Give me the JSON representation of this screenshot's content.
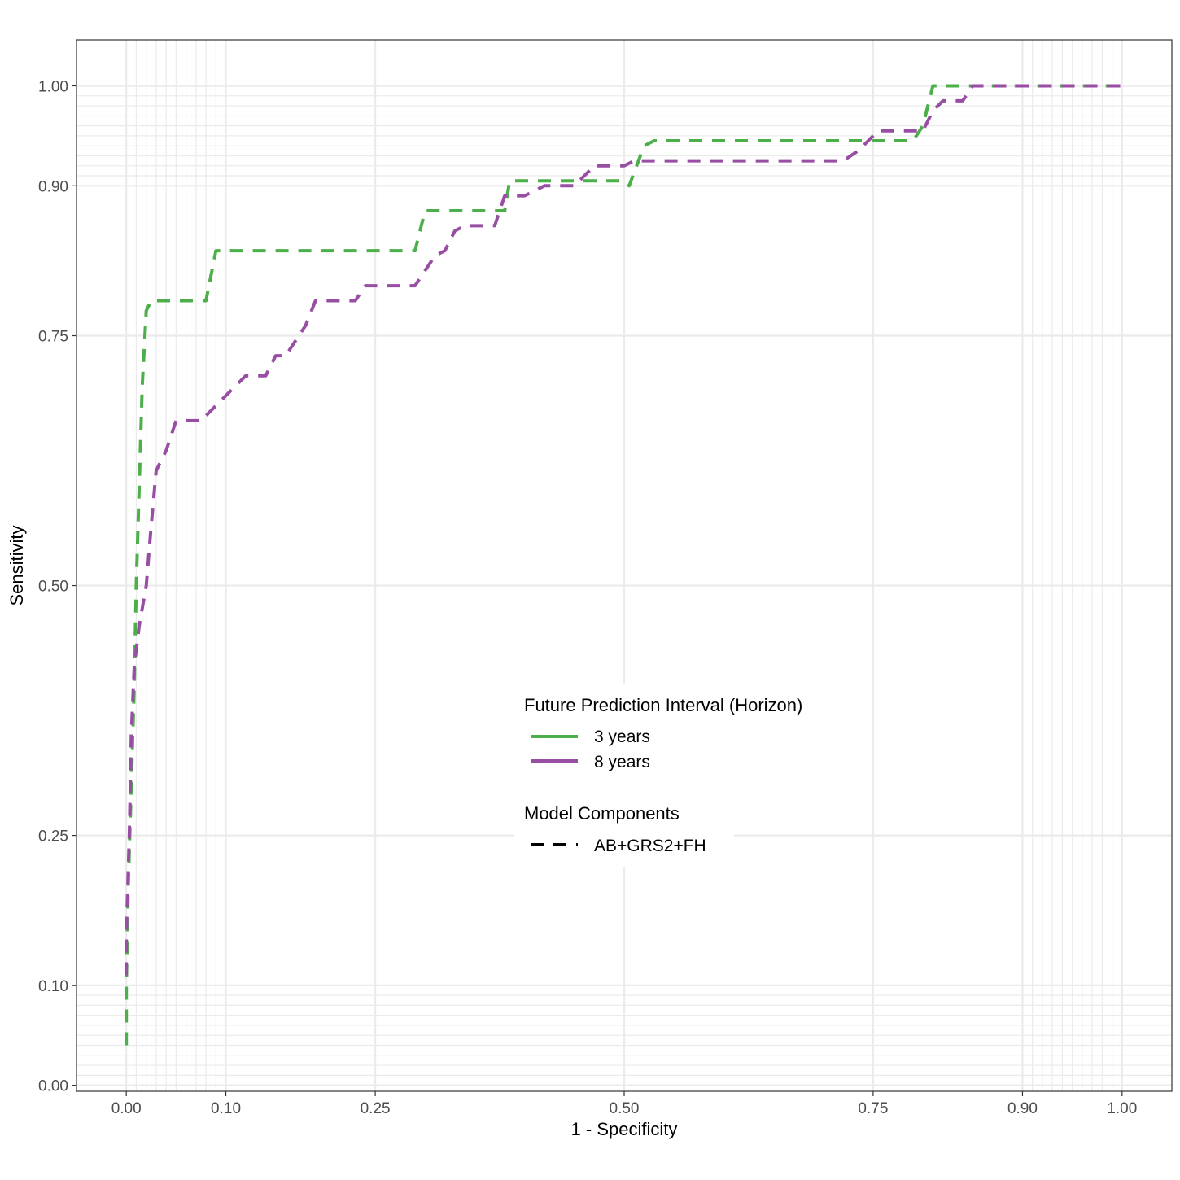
{
  "chart_data": {
    "type": "line",
    "xlabel": "1 - Specificity",
    "ylabel": "Sensitivity",
    "xlim": [
      -0.05,
      1.05
    ],
    "ylim": [
      -0.006,
      1.046
    ],
    "xticks": [
      0,
      0.1,
      0.25,
      0.5,
      0.75,
      0.9,
      1
    ],
    "xtick_labels": [
      "0.00",
      "0.10",
      "0.25",
      "0.50",
      "0.75",
      "0.90",
      "1.00"
    ],
    "yticks": [
      0,
      0.1,
      0.25,
      0.5,
      0.75,
      0.9,
      1
    ],
    "ytick_labels": [
      "0.00",
      "0.10",
      "0.25",
      "0.50",
      "0.75",
      "0.90",
      "1.00"
    ],
    "minor_grid": [
      0.01,
      0.02,
      0.03,
      0.04,
      0.05,
      0.06,
      0.07,
      0.08,
      0.09,
      0.91,
      0.92,
      0.93,
      0.94,
      0.95,
      0.96,
      0.97,
      0.98,
      0.99
    ],
    "grid": true,
    "legend_position": "center",
    "legend": {
      "color_title": "Future Prediction Interval (Horizon)",
      "linetype_title": "Model Components",
      "linetype_label": "AB+GRS2+FH"
    },
    "colors": {
      "gridline": "#ebebeb",
      "panel_border": "#333333"
    },
    "series": [
      {
        "name": "3 years",
        "color": "#4daf4a",
        "dash": "dashed",
        "points": [
          [
            0.0,
            0.04
          ],
          [
            0.0,
            0.1
          ],
          [
            0.002,
            0.2
          ],
          [
            0.005,
            0.3
          ],
          [
            0.008,
            0.4
          ],
          [
            0.01,
            0.5
          ],
          [
            0.013,
            0.6
          ],
          [
            0.016,
            0.7
          ],
          [
            0.02,
            0.775
          ],
          [
            0.025,
            0.785
          ],
          [
            0.08,
            0.785
          ],
          [
            0.09,
            0.835
          ],
          [
            0.29,
            0.835
          ],
          [
            0.3,
            0.875
          ],
          [
            0.38,
            0.875
          ],
          [
            0.385,
            0.905
          ],
          [
            0.5,
            0.905
          ],
          [
            0.505,
            0.9
          ],
          [
            0.52,
            0.94
          ],
          [
            0.53,
            0.945
          ],
          [
            0.79,
            0.945
          ],
          [
            0.8,
            0.96
          ],
          [
            0.81,
            1.0
          ],
          [
            1.0,
            1.0
          ]
        ]
      },
      {
        "name": "8 years",
        "color": "#984ea3",
        "dash": "dashed",
        "points": [
          [
            0.0,
            0.11
          ],
          [
            0.0,
            0.15
          ],
          [
            0.003,
            0.25
          ],
          [
            0.005,
            0.35
          ],
          [
            0.008,
            0.42
          ],
          [
            0.013,
            0.46
          ],
          [
            0.02,
            0.5
          ],
          [
            0.025,
            0.56
          ],
          [
            0.03,
            0.615
          ],
          [
            0.04,
            0.635
          ],
          [
            0.05,
            0.665
          ],
          [
            0.075,
            0.665
          ],
          [
            0.1,
            0.69
          ],
          [
            0.12,
            0.71
          ],
          [
            0.14,
            0.71
          ],
          [
            0.15,
            0.73
          ],
          [
            0.16,
            0.73
          ],
          [
            0.18,
            0.76
          ],
          [
            0.19,
            0.785
          ],
          [
            0.23,
            0.785
          ],
          [
            0.24,
            0.8
          ],
          [
            0.29,
            0.8
          ],
          [
            0.31,
            0.83
          ],
          [
            0.32,
            0.835
          ],
          [
            0.33,
            0.855
          ],
          [
            0.34,
            0.86
          ],
          [
            0.37,
            0.86
          ],
          [
            0.38,
            0.89
          ],
          [
            0.4,
            0.89
          ],
          [
            0.42,
            0.9
          ],
          [
            0.45,
            0.9
          ],
          [
            0.47,
            0.92
          ],
          [
            0.5,
            0.92
          ],
          [
            0.51,
            0.925
          ],
          [
            0.72,
            0.925
          ],
          [
            0.735,
            0.935
          ],
          [
            0.755,
            0.955
          ],
          [
            0.8,
            0.955
          ],
          [
            0.81,
            0.975
          ],
          [
            0.82,
            0.985
          ],
          [
            0.84,
            0.985
          ],
          [
            0.85,
            1.0
          ],
          [
            1.0,
            1.0
          ]
        ]
      }
    ]
  }
}
